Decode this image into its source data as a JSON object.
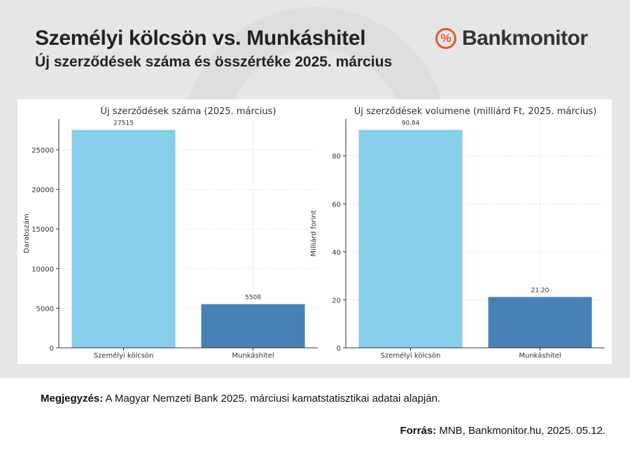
{
  "header": {
    "title": "Személyi kölcsön vs. Munkáshitel",
    "subtitle": "Új szerződések száma és összértéke 2025. március",
    "logo_text": "Bankmonitor",
    "logo_icon": "percent-icon"
  },
  "colors": {
    "personal_loan": "#87ceeb",
    "worker_loan": "#4682b4",
    "brand": "#e4572e"
  },
  "chart_data": [
    {
      "type": "bar",
      "title": "Új szerződések száma (2025. március)",
      "xlabel": "",
      "ylabel": "Darabszám",
      "categories": [
        "Személyi kölcsön",
        "Munkáshitel"
      ],
      "values": [
        27515,
        5508
      ],
      "value_labels": [
        "27515",
        "5508"
      ],
      "yticks": [
        0,
        5000,
        10000,
        15000,
        20000,
        25000
      ],
      "ylim": [
        0,
        28891
      ],
      "grid": true
    },
    {
      "type": "bar",
      "title": "Új szerződések volumene (milliárd Ft, 2025. március)",
      "xlabel": "",
      "ylabel": "Milliárd forint",
      "categories": [
        "Személyi kölcsön",
        "Munkáshitel"
      ],
      "values": [
        90.84,
        21.2
      ],
      "value_labels": [
        "90.84",
        "21.20"
      ],
      "yticks": [
        0,
        20,
        40,
        60,
        80
      ],
      "ylim": [
        0,
        95.38
      ],
      "grid": true
    }
  ],
  "footer": {
    "note_label": "Megjegyzés:",
    "note_text": "A Magyar Nemzeti Bank 2025. márciusi kamatstatisztikai adatai alapján.",
    "source_label": "Forrás:",
    "source_text": "MNB, Bankmonitor.hu, 2025. 05.12."
  }
}
